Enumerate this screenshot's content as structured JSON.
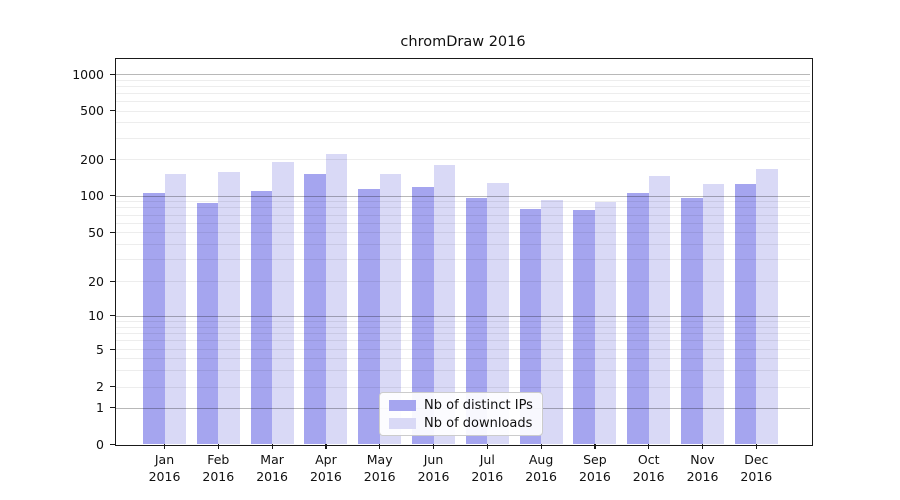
{
  "chart_data": {
    "type": "bar",
    "title": "chromDraw 2016",
    "year_label": "2016",
    "categories": [
      "Jan",
      "Feb",
      "Mar",
      "Apr",
      "May",
      "Jun",
      "Jul",
      "Aug",
      "Sep",
      "Oct",
      "Nov",
      "Dec"
    ],
    "series": [
      {
        "name": "Nb of distinct IPs",
        "color": "#a5a5ef",
        "values": [
          105,
          87,
          110,
          152,
          113,
          118,
          96,
          78,
          76,
          105,
          96,
          125
        ]
      },
      {
        "name": "Nb of downloads",
        "color": "#d9d9f6",
        "values": [
          152,
          157,
          190,
          220,
          150,
          180,
          127,
          93,
          89,
          146,
          125,
          166
        ]
      }
    ],
    "yticks": [
      0,
      1,
      2,
      5,
      10,
      20,
      50,
      100,
      200,
      500,
      1000
    ],
    "ylim": [
      0,
      1000
    ],
    "xlabel": "",
    "ylabel": "",
    "scale": "pseudo-log (log above 1, compressed linear near 0)",
    "grid": "horizontal; dark gray lines at 1,10,100,1000; light minor lines at 2-9 multiples; drawn over bars",
    "legend_position": "bottom-center inside plot area"
  },
  "colors": {
    "background": "#ffffff",
    "major_grid": "#b8b8b8",
    "minor_grid": "#ededed",
    "spine": "#1a1a1a",
    "legend_border": "#cccccc",
    "text": "#111111"
  }
}
